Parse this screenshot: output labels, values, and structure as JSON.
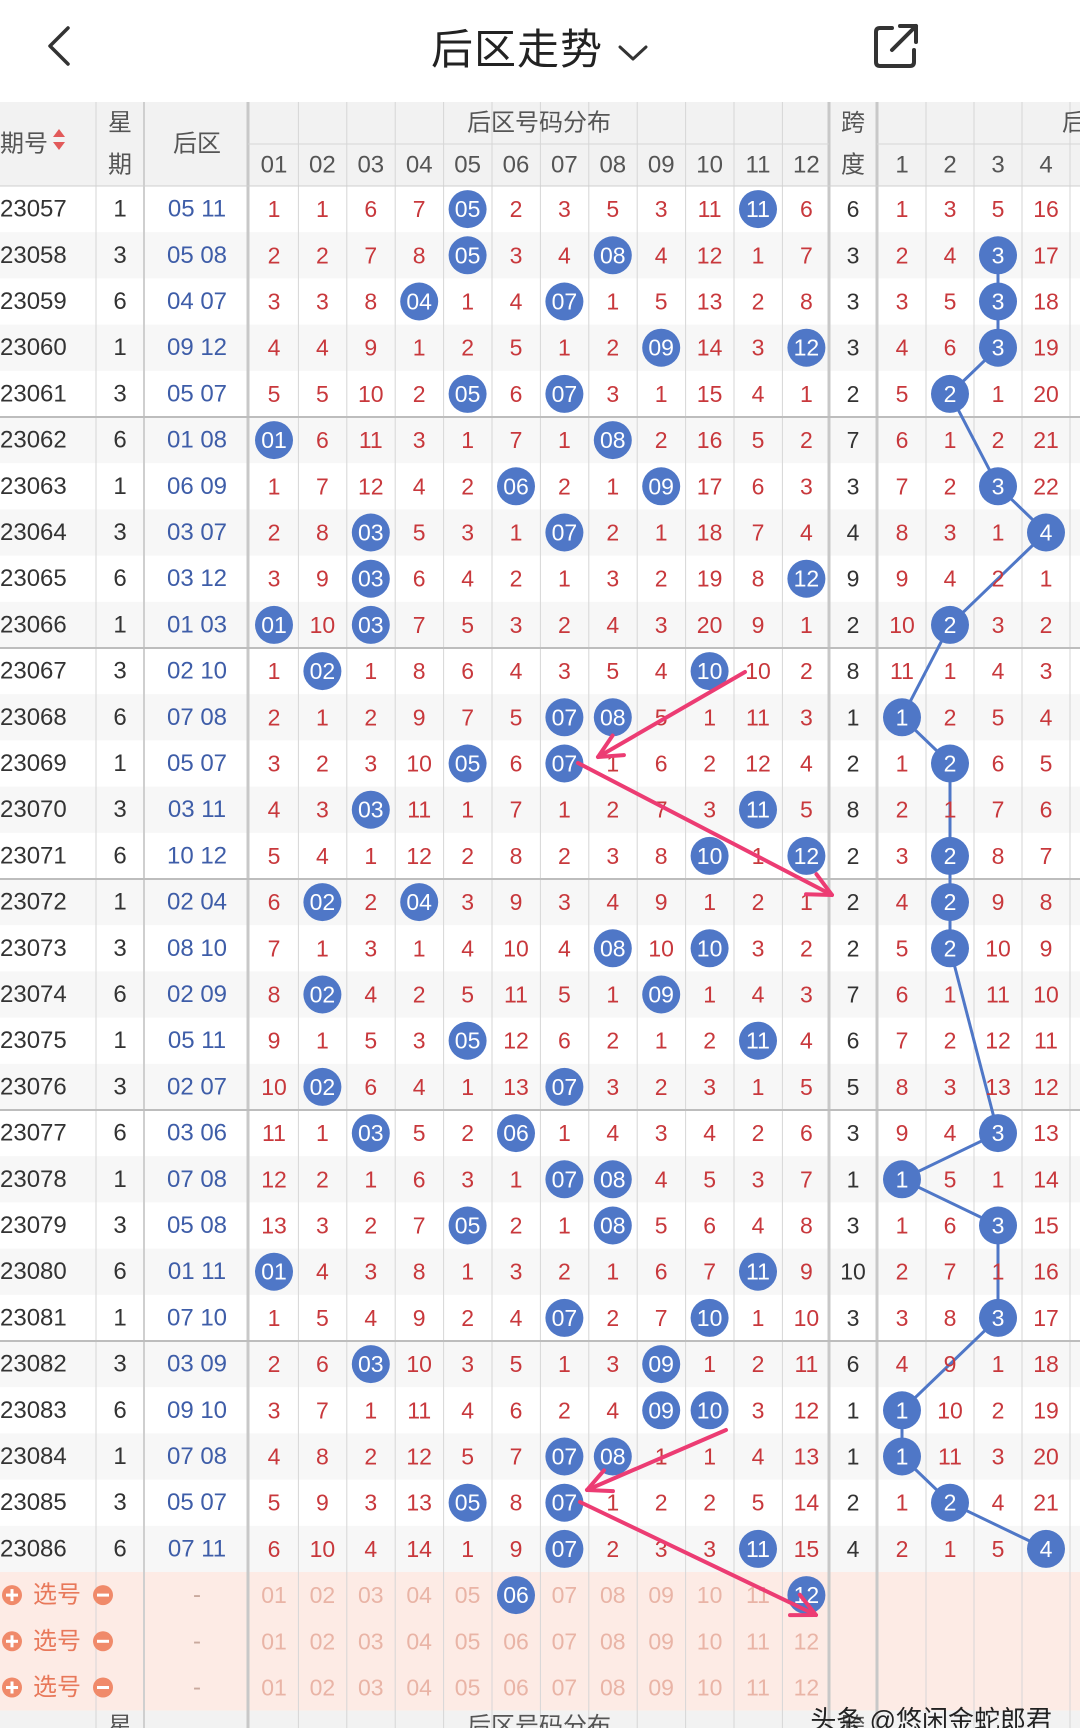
{
  "nav": {
    "title": "后区走势",
    "back_icon": "chevron-left-icon",
    "dropdown_icon": "chevron-down-icon",
    "share_icon": "share-icon"
  },
  "header": {
    "period": "期号",
    "week_top": "星",
    "week_bottom": "期",
    "back_area": "后区",
    "dist_title": "后区号码分布",
    "dist_cols": [
      "01",
      "02",
      "03",
      "04",
      "05",
      "06",
      "07",
      "08",
      "09",
      "10",
      "11",
      "12"
    ],
    "span_top": "跨",
    "span_bottom": "度",
    "extra_title": "后",
    "extra_cols": [
      "1",
      "2",
      "3",
      "4"
    ]
  },
  "rows": [
    {
      "p": "23057",
      "w": "1",
      "b": "05 11",
      "d": [
        "1",
        "1",
        "6",
        "7",
        "05",
        "2",
        "3",
        "5",
        "3",
        "11",
        "11",
        "6"
      ],
      "s": "6",
      "e": [
        "1",
        "3",
        "5",
        "16"
      ],
      "hi": [
        4,
        10
      ],
      "ehi": []
    },
    {
      "p": "23058",
      "w": "3",
      "b": "05 08",
      "d": [
        "2",
        "2",
        "7",
        "8",
        "05",
        "3",
        "4",
        "08",
        "4",
        "12",
        "1",
        "7"
      ],
      "s": "3",
      "e": [
        "2",
        "4",
        "3",
        "17"
      ],
      "hi": [
        4,
        7
      ],
      "ehi": [
        2
      ]
    },
    {
      "p": "23059",
      "w": "6",
      "b": "04 07",
      "d": [
        "3",
        "3",
        "8",
        "04",
        "1",
        "4",
        "07",
        "1",
        "5",
        "13",
        "2",
        "8"
      ],
      "s": "3",
      "e": [
        "3",
        "5",
        "3",
        "18"
      ],
      "hi": [
        3,
        6
      ],
      "ehi": [
        2
      ]
    },
    {
      "p": "23060",
      "w": "1",
      "b": "09 12",
      "d": [
        "4",
        "4",
        "9",
        "1",
        "2",
        "5",
        "1",
        "2",
        "09",
        "14",
        "3",
        "12"
      ],
      "s": "3",
      "e": [
        "4",
        "6",
        "3",
        "19"
      ],
      "hi": [
        8,
        11
      ],
      "ehi": [
        2
      ]
    },
    {
      "p": "23061",
      "w": "3",
      "b": "05 07",
      "d": [
        "5",
        "5",
        "10",
        "2",
        "05",
        "6",
        "07",
        "3",
        "1",
        "15",
        "4",
        "1"
      ],
      "s": "2",
      "e": [
        "5",
        "2",
        "1",
        "20"
      ],
      "hi": [
        4,
        6
      ],
      "ehi": [
        1
      ]
    },
    {
      "p": "23062",
      "w": "6",
      "b": "01 08",
      "d": [
        "01",
        "6",
        "11",
        "3",
        "1",
        "7",
        "1",
        "08",
        "2",
        "16",
        "5",
        "2"
      ],
      "s": "7",
      "e": [
        "6",
        "1",
        "2",
        "21"
      ],
      "hi": [
        0,
        7
      ],
      "ehi": []
    },
    {
      "p": "23063",
      "w": "1",
      "b": "06 09",
      "d": [
        "1",
        "7",
        "12",
        "4",
        "2",
        "06",
        "2",
        "1",
        "09",
        "17",
        "6",
        "3"
      ],
      "s": "3",
      "e": [
        "7",
        "2",
        "3",
        "22"
      ],
      "hi": [
        5,
        8
      ],
      "ehi": [
        2
      ]
    },
    {
      "p": "23064",
      "w": "3",
      "b": "03 07",
      "d": [
        "2",
        "8",
        "03",
        "5",
        "3",
        "1",
        "07",
        "2",
        "1",
        "18",
        "7",
        "4"
      ],
      "s": "4",
      "e": [
        "8",
        "3",
        "1",
        "4"
      ],
      "hi": [
        2,
        6
      ],
      "ehi": [
        3
      ]
    },
    {
      "p": "23065",
      "w": "6",
      "b": "03 12",
      "d": [
        "3",
        "9",
        "03",
        "6",
        "4",
        "2",
        "1",
        "3",
        "2",
        "19",
        "8",
        "12"
      ],
      "s": "9",
      "e": [
        "9",
        "4",
        "2",
        "1"
      ],
      "hi": [
        2,
        11
      ],
      "ehi": []
    },
    {
      "p": "23066",
      "w": "1",
      "b": "01 03",
      "d": [
        "01",
        "10",
        "03",
        "7",
        "5",
        "3",
        "2",
        "4",
        "3",
        "20",
        "9",
        "1"
      ],
      "s": "2",
      "e": [
        "10",
        "2",
        "3",
        "2"
      ],
      "hi": [
        0,
        2
      ],
      "ehi": [
        1
      ]
    },
    {
      "p": "23067",
      "w": "3",
      "b": "02 10",
      "d": [
        "1",
        "02",
        "1",
        "8",
        "6",
        "4",
        "3",
        "5",
        "4",
        "10",
        "10",
        "2"
      ],
      "s": "8",
      "e": [
        "11",
        "1",
        "4",
        "3"
      ],
      "hi": [
        1,
        9
      ],
      "ehi": []
    },
    {
      "p": "23068",
      "w": "6",
      "b": "07 08",
      "d": [
        "2",
        "1",
        "2",
        "9",
        "7",
        "5",
        "07",
        "08",
        "5",
        "1",
        "11",
        "3"
      ],
      "s": "1",
      "e": [
        "1",
        "2",
        "5",
        "4"
      ],
      "hi": [
        6,
        7
      ],
      "ehi": [
        0
      ]
    },
    {
      "p": "23069",
      "w": "1",
      "b": "05 07",
      "d": [
        "3",
        "2",
        "3",
        "10",
        "05",
        "6",
        "07",
        "1",
        "6",
        "2",
        "12",
        "4"
      ],
      "s": "2",
      "e": [
        "1",
        "2",
        "6",
        "5"
      ],
      "hi": [
        4,
        6
      ],
      "ehi": [
        1
      ]
    },
    {
      "p": "23070",
      "w": "3",
      "b": "03 11",
      "d": [
        "4",
        "3",
        "03",
        "11",
        "1",
        "7",
        "1",
        "2",
        "7",
        "3",
        "11",
        "5"
      ],
      "s": "8",
      "e": [
        "2",
        "1",
        "7",
        "6"
      ],
      "hi": [
        2,
        10
      ],
      "ehi": []
    },
    {
      "p": "23071",
      "w": "6",
      "b": "10 12",
      "d": [
        "5",
        "4",
        "1",
        "12",
        "2",
        "8",
        "2",
        "3",
        "8",
        "10",
        "1",
        "12"
      ],
      "s": "2",
      "e": [
        "3",
        "2",
        "8",
        "7"
      ],
      "hi": [
        9,
        11
      ],
      "ehi": [
        1
      ]
    },
    {
      "p": "23072",
      "w": "1",
      "b": "02 04",
      "d": [
        "6",
        "02",
        "2",
        "04",
        "3",
        "9",
        "3",
        "4",
        "9",
        "1",
        "2",
        "1"
      ],
      "s": "2",
      "e": [
        "4",
        "2",
        "9",
        "8"
      ],
      "hi": [
        1,
        3
      ],
      "ehi": [
        1
      ]
    },
    {
      "p": "23073",
      "w": "3",
      "b": "08 10",
      "d": [
        "7",
        "1",
        "3",
        "1",
        "4",
        "10",
        "4",
        "08",
        "10",
        "10",
        "3",
        "2"
      ],
      "s": "2",
      "e": [
        "5",
        "2",
        "10",
        "9"
      ],
      "hi": [
        7,
        9
      ],
      "ehi": [
        1
      ]
    },
    {
      "p": "23074",
      "w": "6",
      "b": "02 09",
      "d": [
        "8",
        "02",
        "4",
        "2",
        "5",
        "11",
        "5",
        "1",
        "09",
        "1",
        "4",
        "3"
      ],
      "s": "7",
      "e": [
        "6",
        "1",
        "11",
        "10"
      ],
      "hi": [
        1,
        8
      ],
      "ehi": []
    },
    {
      "p": "23075",
      "w": "1",
      "b": "05 11",
      "d": [
        "9",
        "1",
        "5",
        "3",
        "05",
        "12",
        "6",
        "2",
        "1",
        "2",
        "11",
        "4"
      ],
      "s": "6",
      "e": [
        "7",
        "2",
        "12",
        "11"
      ],
      "hi": [
        4,
        10
      ],
      "ehi": []
    },
    {
      "p": "23076",
      "w": "3",
      "b": "02 07",
      "d": [
        "10",
        "02",
        "6",
        "4",
        "1",
        "13",
        "07",
        "3",
        "2",
        "3",
        "1",
        "5"
      ],
      "s": "5",
      "e": [
        "8",
        "3",
        "13",
        "12"
      ],
      "hi": [
        1,
        6
      ],
      "ehi": []
    },
    {
      "p": "23077",
      "w": "6",
      "b": "03 06",
      "d": [
        "11",
        "1",
        "03",
        "5",
        "2",
        "06",
        "1",
        "4",
        "3",
        "4",
        "2",
        "6"
      ],
      "s": "3",
      "e": [
        "9",
        "4",
        "3",
        "13"
      ],
      "hi": [
        2,
        5
      ],
      "ehi": [
        2
      ]
    },
    {
      "p": "23078",
      "w": "1",
      "b": "07 08",
      "d": [
        "12",
        "2",
        "1",
        "6",
        "3",
        "1",
        "07",
        "08",
        "4",
        "5",
        "3",
        "7"
      ],
      "s": "1",
      "e": [
        "1",
        "5",
        "1",
        "14"
      ],
      "hi": [
        6,
        7
      ],
      "ehi": [
        0
      ]
    },
    {
      "p": "23079",
      "w": "3",
      "b": "05 08",
      "d": [
        "13",
        "3",
        "2",
        "7",
        "05",
        "2",
        "1",
        "08",
        "5",
        "6",
        "4",
        "8"
      ],
      "s": "3",
      "e": [
        "1",
        "6",
        "3",
        "15"
      ],
      "hi": [
        4,
        7
      ],
      "ehi": [
        2
      ]
    },
    {
      "p": "23080",
      "w": "6",
      "b": "01 11",
      "d": [
        "01",
        "4",
        "3",
        "8",
        "1",
        "3",
        "2",
        "1",
        "6",
        "7",
        "11",
        "9"
      ],
      "s": "10",
      "e": [
        "2",
        "7",
        "1",
        "16"
      ],
      "hi": [
        0,
        10
      ],
      "ehi": []
    },
    {
      "p": "23081",
      "w": "1",
      "b": "07 10",
      "d": [
        "1",
        "5",
        "4",
        "9",
        "2",
        "4",
        "07",
        "2",
        "7",
        "10",
        "1",
        "10"
      ],
      "s": "3",
      "e": [
        "3",
        "8",
        "3",
        "17"
      ],
      "hi": [
        6,
        9
      ],
      "ehi": [
        2
      ]
    },
    {
      "p": "23082",
      "w": "3",
      "b": "03 09",
      "d": [
        "2",
        "6",
        "03",
        "10",
        "3",
        "5",
        "1",
        "3",
        "09",
        "1",
        "2",
        "11"
      ],
      "s": "6",
      "e": [
        "4",
        "9",
        "1",
        "18"
      ],
      "hi": [
        2,
        8
      ],
      "ehi": []
    },
    {
      "p": "23083",
      "w": "6",
      "b": "09 10",
      "d": [
        "3",
        "7",
        "1",
        "11",
        "4",
        "6",
        "2",
        "4",
        "09",
        "10",
        "3",
        "12"
      ],
      "s": "1",
      "e": [
        "1",
        "10",
        "2",
        "19"
      ],
      "hi": [
        8,
        9
      ],
      "ehi": [
        0
      ]
    },
    {
      "p": "23084",
      "w": "1",
      "b": "07 08",
      "d": [
        "4",
        "8",
        "2",
        "12",
        "5",
        "7",
        "07",
        "08",
        "1",
        "1",
        "4",
        "13"
      ],
      "s": "1",
      "e": [
        "1",
        "11",
        "3",
        "20"
      ],
      "hi": [
        6,
        7
      ],
      "ehi": [
        0
      ]
    },
    {
      "p": "23085",
      "w": "3",
      "b": "05 07",
      "d": [
        "5",
        "9",
        "3",
        "13",
        "05",
        "8",
        "07",
        "1",
        "2",
        "2",
        "5",
        "14"
      ],
      "s": "2",
      "e": [
        "1",
        "2",
        "4",
        "21"
      ],
      "hi": [
        4,
        6
      ],
      "ehi": [
        1
      ]
    },
    {
      "p": "23086",
      "w": "6",
      "b": "07 11",
      "d": [
        "6",
        "10",
        "4",
        "14",
        "1",
        "9",
        "07",
        "2",
        "3",
        "3",
        "11",
        "15"
      ],
      "s": "4",
      "e": [
        "2",
        "1",
        "5",
        "4"
      ],
      "hi": [
        6,
        10
      ],
      "ehi": [
        3
      ]
    }
  ],
  "select_rows": [
    {
      "label": "选号",
      "dash": "-",
      "nums": [
        "01",
        "02",
        "03",
        "04",
        "05",
        "06",
        "07",
        "08",
        "09",
        "10",
        "11",
        "12"
      ],
      "sel": [
        5,
        11
      ]
    },
    {
      "label": "选号",
      "dash": "-",
      "nums": [
        "01",
        "02",
        "03",
        "04",
        "05",
        "06",
        "07",
        "08",
        "09",
        "10",
        "11",
        "12"
      ],
      "sel": []
    },
    {
      "label": "选号",
      "dash": "-",
      "nums": [
        "01",
        "02",
        "03",
        "04",
        "05",
        "06",
        "07",
        "08",
        "09",
        "10",
        "11",
        "12"
      ],
      "sel": []
    }
  ],
  "footer": {
    "week": "星",
    "dist_title": "后区号码分布",
    "span": "跨"
  },
  "watermark": "头条 @悠闲金蛇郎君",
  "colors": {
    "accent": "#4f77c7",
    "red": "#c8383c",
    "blue_text": "#3e5da8",
    "arrow": "#ec3c73",
    "select_bg": "#fdebe5",
    "header_bg": "#f2f2f2"
  }
}
